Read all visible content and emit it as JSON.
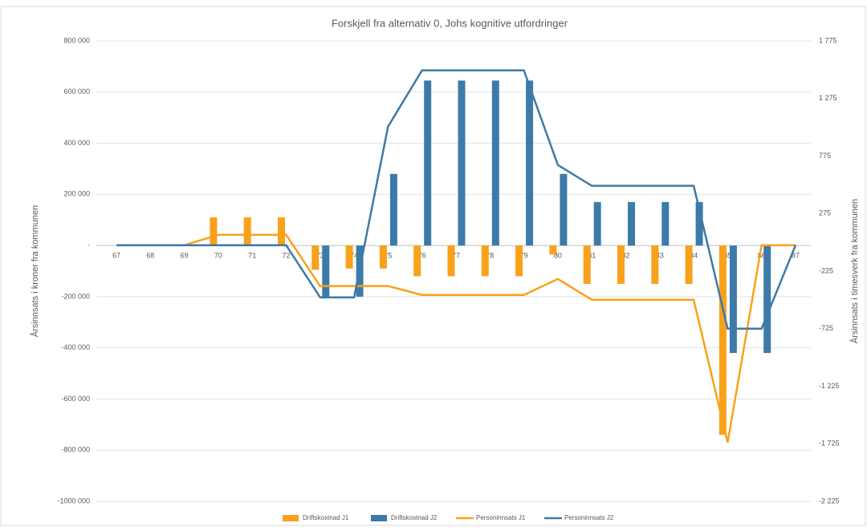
{
  "chart_data": {
    "type": "bar-line",
    "title": "Forskjell fra alternativ 0, Johs kognitive utfordringer",
    "ylabel": "Årsinnsats i kroner fra kommunen",
    "y2label": "Årsinnsats i timesverk fra kommunen",
    "categories": [
      "67",
      "68",
      "69",
      "70",
      "71",
      "72",
      "73",
      "74",
      "75",
      "76",
      "77",
      "78",
      "79",
      "80",
      "81",
      "82",
      "83",
      "84",
      "85",
      "86",
      "87"
    ],
    "series": [
      {
        "name": "Driftskostnad J1",
        "kind": "bar",
        "color": "#f9a11b",
        "values": [
          0,
          0,
          0,
          110000,
          110000,
          110000,
          -95000,
          -90000,
          -90000,
          -120000,
          -120000,
          -120000,
          -120000,
          -35000,
          -150000,
          -150000,
          -150000,
          -150000,
          -740000,
          0,
          0
        ]
      },
      {
        "name": "Driftskostnad J2",
        "kind": "bar",
        "color": "#3d7aa8",
        "values": [
          0,
          0,
          0,
          0,
          0,
          0,
          -200000,
          -200000,
          280000,
          645000,
          645000,
          645000,
          645000,
          280000,
          170000,
          170000,
          170000,
          170000,
          -420000,
          -420000,
          0
        ]
      },
      {
        "name": "Personinnsats J1",
        "kind": "line",
        "axis": "y2",
        "color": "#f9a11b",
        "values": [
          0,
          0,
          0,
          90,
          90,
          90,
          -355,
          -355,
          -355,
          -432,
          -432,
          -432,
          -432,
          -293,
          -474,
          -474,
          -474,
          -474,
          -1714,
          0,
          0
        ]
      },
      {
        "name": "Personinnsats J2",
        "kind": "line",
        "axis": "y2",
        "color": "#3d7aa8",
        "values": [
          0,
          0,
          0,
          0,
          0,
          0,
          -453,
          -453,
          1031,
          1519,
          1519,
          1519,
          1519,
          697,
          516,
          516,
          516,
          516,
          -725,
          -725,
          0
        ]
      }
    ],
    "ylim": [
      -1000000,
      800000
    ],
    "yticks": [
      {
        "value": 800000,
        "label": "800 000"
      },
      {
        "value": 600000,
        "label": "600 000"
      },
      {
        "value": 400000,
        "label": "400 000"
      },
      {
        "value": 200000,
        "label": "200 000"
      },
      {
        "value": 0,
        "label": "-"
      },
      {
        "value": -200000,
        "label": "-200 000"
      },
      {
        "value": -400000,
        "label": "-400 000"
      },
      {
        "value": -600000,
        "label": "-600 000"
      },
      {
        "value": -800000,
        "label": "-800 000"
      },
      {
        "value": -1000000,
        "label": "-1000 000"
      }
    ],
    "y2lim": [
      -2225,
      1775
    ],
    "y2ticks": [
      {
        "value": 1775,
        "label": "1 775"
      },
      {
        "value": 1275,
        "label": "1 275"
      },
      775,
      275,
      -225,
      -725,
      {
        "value": -1225,
        "label": "-1 225"
      },
      {
        "value": -1725,
        "label": "-1 725"
      },
      {
        "value": -2225,
        "label": "-2 225"
      }
    ],
    "grid": true,
    "legend": "bottom"
  }
}
